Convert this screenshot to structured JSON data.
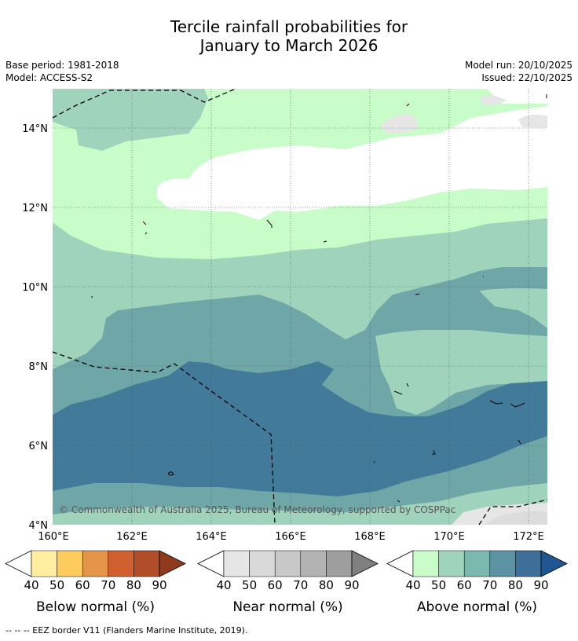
{
  "title_line1": "Tercile rainfall probabilities for",
  "title_line2": "January to March 2026",
  "base_period": "Base period: 1981-2018",
  "model": "Model: ACCESS-S2",
  "model_run": "Model run: 20/10/2025",
  "issued": "Issued: 22/10/2025",
  "copyright": "© Commonwealth of Australia 2025, Bureau of Meteorology, supported by COSPPac",
  "footer_note": "--  --  -- EEZ border V11 (Flanders Marine Institute, 2019).",
  "lat_ticks": [
    "14°N",
    "12°N",
    "10°N",
    "8°N",
    "6°N",
    "4°N"
  ],
  "lon_ticks": [
    "160°E",
    "162°E",
    "164°E",
    "166°E",
    "168°E",
    "170°E",
    "172°E"
  ],
  "colorbars": [
    {
      "label": "Below normal (%)",
      "ticks": [
        "40",
        "50",
        "60",
        "70",
        "80",
        "90"
      ],
      "colors": [
        "#ffeda0",
        "#fecc5c",
        "#e5954a",
        "#d0602f",
        "#b24d2a",
        "#8f3a1f"
      ]
    },
    {
      "label": "Near normal (%)",
      "ticks": [
        "40",
        "50",
        "60",
        "70",
        "80",
        "90"
      ],
      "colors": [
        "#e6e6e6",
        "#d9d9d9",
        "#c8c8c8",
        "#b3b3b3",
        "#9e9e9e",
        "#7f7f7f"
      ]
    },
    {
      "label": "Above normal (%)",
      "ticks": [
        "40",
        "50",
        "60",
        "70",
        "80",
        "90"
      ],
      "colors": [
        "#c8fcc8",
        "#9fd3bc",
        "#7bb8ad",
        "#5b93a3",
        "#3d6f98",
        "#1f5591"
      ]
    }
  ],
  "shading_colors": {
    "above_40": "#c8fcc8",
    "above_50": "#9fd3bc",
    "above_60": "#6fa7a8",
    "above_70": "#427b9a",
    "near_40": "#e6e6e6",
    "near_50": "#dddddd",
    "neutral": "#ffffff"
  }
}
